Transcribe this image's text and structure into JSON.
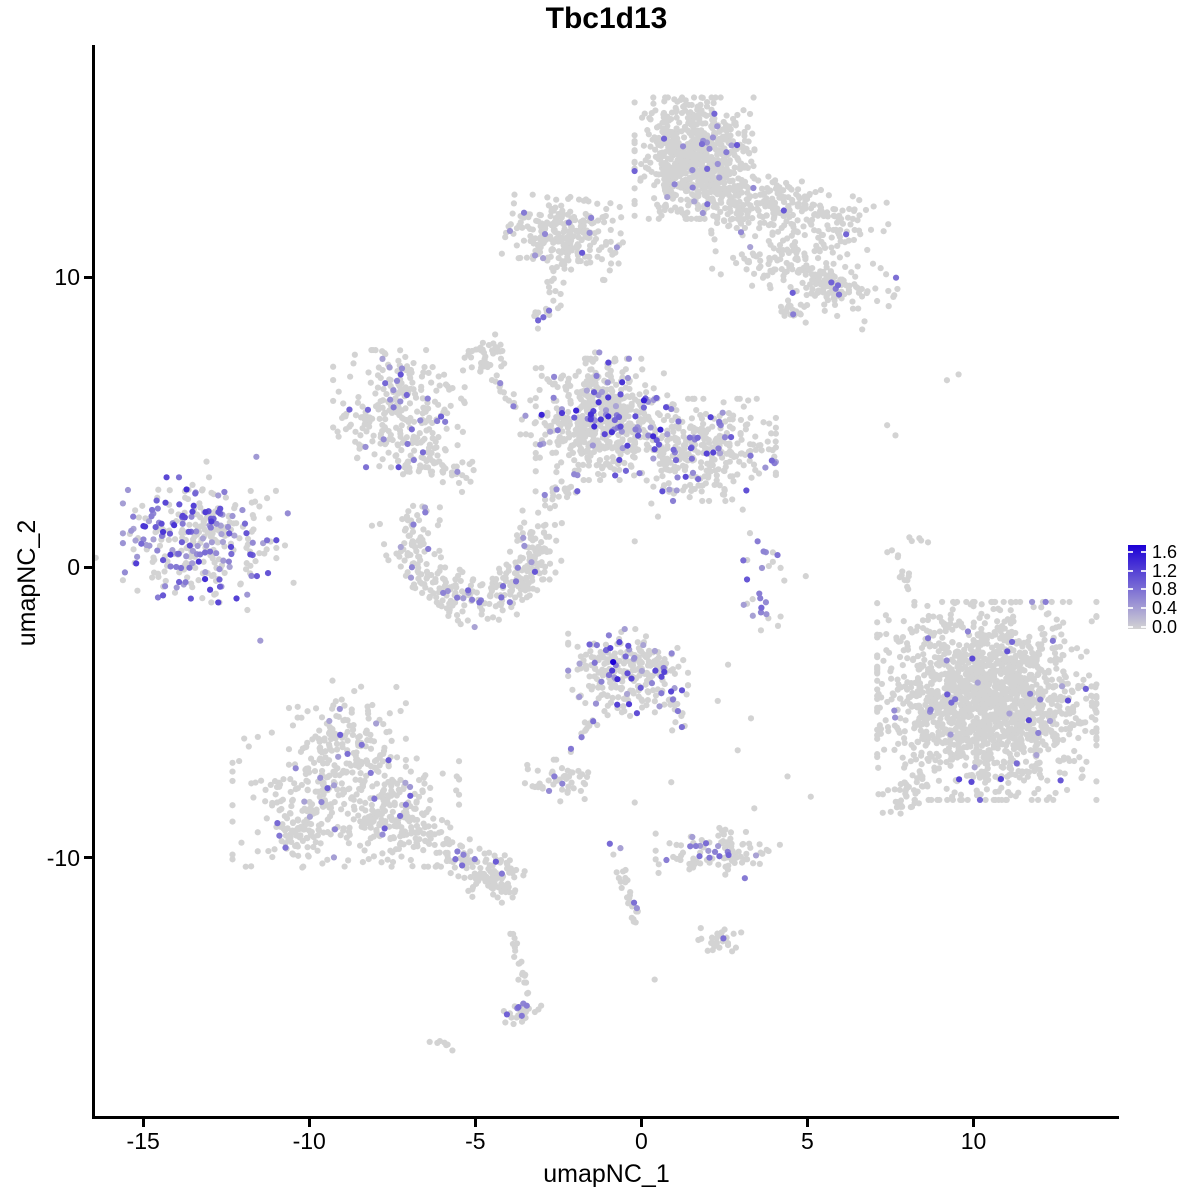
{
  "title": "Tbc1d13",
  "labels": {
    "x_axis": "umapNC_1",
    "y_axis": "umapNC_2"
  },
  "chart_data": {
    "type": "scatter",
    "subtype": "umap-feature-plot",
    "title": "Tbc1d13",
    "xlabel": "umapNC_1",
    "ylabel": "umapNC_2",
    "xlim": [
      -16.45,
      14.35
    ],
    "ylim": [
      -18.9,
      18.0
    ],
    "grid": false,
    "x_tick_values": [
      -15,
      -10,
      -5,
      0,
      5,
      10
    ],
    "x_tick_labels": [
      "-15",
      "-10",
      "-5",
      "0",
      "5",
      "10"
    ],
    "y_tick_values": [
      10,
      0,
      -10
    ],
    "y_tick_labels": [
      "10",
      "0",
      "-10"
    ],
    "point_radius_px": 3.1,
    "legend": {
      "position": "right",
      "breaks": [
        1.6,
        1.2,
        0.8,
        0.4,
        0.0
      ],
      "labels": [
        "1.6",
        "1.2",
        "0.8",
        "0.4",
        "0.0"
      ],
      "bar_range": [
        -0.05,
        1.75
      ],
      "value_max": 1.6,
      "low_color": "#D3D3D3",
      "high_color": "#1C00D6"
    },
    "clusters": [
      {
        "name": "top-main",
        "type": "gauss",
        "c": [
          1.6,
          14.1
        ],
        "sx": 0.82,
        "sy": 0.95,
        "n": 720,
        "frac": 0.022
      },
      {
        "name": "top-band",
        "type": "gauss",
        "c": [
          4.15,
          12.35
        ],
        "sx": 1.5,
        "sy": 0.5,
        "rot": -16,
        "n": 300,
        "frac": 0.02
      },
      {
        "name": "top-arm",
        "type": "gauss",
        "c": [
          4.75,
          10.25
        ],
        "sx": 1.35,
        "sy": 0.5,
        "rot": -24,
        "n": 170,
        "frac": 0.012
      },
      {
        "name": "arm-end",
        "type": "gauss",
        "c": [
          5.8,
          9.7
        ],
        "sx": 0.38,
        "sy": 0.3,
        "n": 55,
        "frac": 0
      },
      {
        "name": "arm-piece",
        "type": "gauss",
        "c": [
          4.55,
          8.8
        ],
        "sx": 0.3,
        "sy": 0.2,
        "rot": -20,
        "n": 22,
        "frac": 0
      },
      {
        "name": "upperleft-blob",
        "type": "gauss",
        "c": [
          -2.3,
          11.45
        ],
        "sx": 0.8,
        "sy": 0.6,
        "rot": -10,
        "n": 270,
        "frac": 0.03
      },
      {
        "name": "upperleft-tail",
        "type": "path",
        "pts": [
          [
            -2.8,
            9.95
          ],
          [
            -2.5,
            9.35
          ]
        ],
        "jit": 0.12,
        "n": 8,
        "frac": 0.25
      },
      {
        "name": "tiny-blob",
        "type": "gauss",
        "c": [
          -2.87,
          8.75
        ],
        "sx": 0.3,
        "sy": 0.13,
        "rot": 42,
        "n": 12,
        "frac": 0.15
      },
      {
        "name": "small-blob",
        "type": "gauss",
        "c": [
          -4.6,
          7.35
        ],
        "sx": 0.35,
        "sy": 0.42,
        "n": 40,
        "frac": 0.02
      },
      {
        "name": "chain-down",
        "type": "path",
        "pts": [
          [
            -4.3,
            6.5
          ],
          [
            -4.0,
            5.9
          ],
          [
            -3.6,
            5.2
          ],
          [
            -3.35,
            4.5
          ]
        ],
        "jit": 0.15,
        "n": 20,
        "frac": 0.05
      },
      {
        "name": "midleft",
        "type": "gauss",
        "c": [
          -7.3,
          5.4
        ],
        "sx": 0.9,
        "sy": 0.95,
        "n": 250,
        "frac": 0.1,
        "vmax": 1.1
      },
      {
        "name": "midleft-hook",
        "type": "gauss",
        "c": [
          -6.8,
          3.75
        ],
        "sx": 0.45,
        "sy": 0.4,
        "n": 45,
        "frac": 0.04
      },
      {
        "name": "midleft-trail",
        "type": "path",
        "pts": [
          [
            -6.3,
            3.4
          ],
          [
            -5.6,
            3.2
          ],
          [
            -5.0,
            3.35
          ]
        ],
        "jit": 0.2,
        "n": 22,
        "frac": 0.04
      },
      {
        "name": "central-main",
        "type": "gauss",
        "c": [
          -1.2,
          5.1
        ],
        "sx": 0.9,
        "sy": 0.95,
        "n": 560,
        "frac": 0.13,
        "vmax": 1.35
      },
      {
        "name": "central-right",
        "type": "gauss",
        "c": [
          1.85,
          4.05
        ],
        "sx": 1.0,
        "sy": 0.8,
        "n": 330,
        "frac": 0.12,
        "vmax": 1.1
      },
      {
        "name": "central-stem",
        "type": "path",
        "pts": [
          [
            -1.5,
            6.4
          ],
          [
            -1.15,
            7.5
          ]
        ],
        "jit": 0.18,
        "n": 12,
        "frac": 0.08
      },
      {
        "name": "crescent",
        "type": "path",
        "pts": [
          [
            -6.9,
            1.7
          ],
          [
            -7.0,
            0.8
          ],
          [
            -6.65,
            -0.2
          ],
          [
            -5.9,
            -0.85
          ],
          [
            -5.0,
            -1.15
          ],
          [
            -4.1,
            -1.0
          ],
          [
            -3.45,
            -0.35
          ],
          [
            -3.2,
            0.5
          ],
          [
            -3.3,
            1.5
          ]
        ],
        "jit": 0.38,
        "n": 340,
        "frac": 0.085
      },
      {
        "name": "chain-mid",
        "type": "path",
        "pts": [
          [
            -3.0,
            2.3
          ],
          [
            -2.4,
            2.65
          ],
          [
            -1.9,
            3.0
          ]
        ],
        "jit": 0.22,
        "n": 26,
        "frac": 0.1
      },
      {
        "name": "left-cluster",
        "type": "gauss",
        "c": [
          -13.3,
          0.95
        ],
        "sx": 1.05,
        "sy": 0.98,
        "n": 310,
        "frac": 0.42,
        "vmax": 1.25
      },
      {
        "name": "left-outliers",
        "type": "gauss",
        "c": [
          -13.0,
          0.9
        ],
        "sx": 2.0,
        "sy": 1.6,
        "n": 26,
        "frac": 0.12
      },
      {
        "name": "botleft-top",
        "type": "gauss",
        "c": [
          -8.85,
          -5.95
        ],
        "sx": 0.8,
        "sy": 0.85,
        "n": 140,
        "frac": 0.07
      },
      {
        "name": "botleft-main",
        "type": "gauss",
        "c": [
          -8.9,
          -8.0
        ],
        "sx": 1.55,
        "sy": 1.05,
        "n": 340,
        "frac": 0.075
      },
      {
        "name": "botleft-left",
        "type": "gauss",
        "c": [
          -10.45,
          -9.35
        ],
        "sx": 0.5,
        "sy": 0.45,
        "n": 55,
        "frac": 0.05
      },
      {
        "name": "botleft-right",
        "type": "gauss",
        "c": [
          -7.55,
          -9.0
        ],
        "sx": 0.6,
        "sy": 0.55,
        "n": 75,
        "frac": 0.06
      },
      {
        "name": "botleft-tail",
        "type": "path",
        "pts": [
          [
            -6.9,
            -8.6
          ],
          [
            -6.0,
            -9.55
          ],
          [
            -5.2,
            -10.3
          ],
          [
            -4.45,
            -10.85
          ]
        ],
        "jit": 0.3,
        "n": 100,
        "frac": 0.05
      },
      {
        "name": "tail-end",
        "type": "gauss",
        "c": [
          -4.35,
          -10.6
        ],
        "sx": 0.45,
        "sy": 0.35,
        "n": 60,
        "frac": 0.03
      },
      {
        "name": "centerbot-main",
        "type": "gauss",
        "c": [
          -0.4,
          -3.62
        ],
        "sx": 0.82,
        "sy": 0.68,
        "n": 270,
        "frac": 0.15,
        "vmax": 1.2
      },
      {
        "name": "centerbot-chain",
        "type": "path",
        "pts": [
          [
            -1.35,
            -5.15
          ],
          [
            -1.8,
            -5.8
          ],
          [
            -2.2,
            -6.35
          ]
        ],
        "jit": 0.12,
        "n": 10,
        "frac": 0
      },
      {
        "name": "centerbot-blob",
        "type": "gauss",
        "c": [
          -2.55,
          -7.35
        ],
        "sx": 0.55,
        "sy": 0.33,
        "n": 48,
        "frac": 0.04
      },
      {
        "name": "centerbot-ext",
        "type": "path",
        "pts": [
          [
            0.9,
            -4.5
          ],
          [
            1.1,
            -5.1
          ],
          [
            1.2,
            -5.65
          ]
        ],
        "jit": 0.12,
        "n": 10,
        "frac": 0
      },
      {
        "name": "right-cluster",
        "type": "gauss",
        "c": [
          10.4,
          -4.6
        ],
        "sx": 1.5,
        "sy": 1.55,
        "n": 1700,
        "frac": 0.02,
        "vmax": 1.1
      },
      {
        "name": "right-tail",
        "type": "path",
        "pts": [
          [
            8.25,
            -6.95
          ],
          [
            7.95,
            -7.75
          ],
          [
            7.7,
            -8.15
          ]
        ],
        "jit": 0.25,
        "n": 35,
        "frac": 0.03
      },
      {
        "name": "right-strand",
        "type": "path",
        "pts": [
          [
            7.65,
            0.75
          ],
          [
            7.75,
            -0.1
          ],
          [
            7.9,
            -0.75
          ]
        ],
        "jit": 0.12,
        "n": 13,
        "frac": 0
      },
      {
        "name": "right-dash",
        "type": "gauss",
        "c": [
          8.25,
          0.95
        ],
        "sx": 0.2,
        "sy": 0.08,
        "rot": -15,
        "n": 5,
        "frac": 0
      },
      {
        "name": "sparse-mid",
        "type": "gauss",
        "c": [
          3.6,
          -0.6
        ],
        "sx": 0.45,
        "sy": 1.25,
        "n": 26,
        "frac": 0.3
      },
      {
        "name": "bottom-horiz",
        "type": "gauss",
        "c": [
          2.3,
          -9.8
        ],
        "sx": 0.85,
        "sy": 0.42,
        "n": 95,
        "frac": 0.1
      },
      {
        "name": "bottom-strand",
        "type": "path",
        "pts": [
          [
            -0.95,
            -9.55
          ],
          [
            -0.6,
            -10.4
          ],
          [
            -0.35,
            -11.3
          ],
          [
            -0.25,
            -12.2
          ]
        ],
        "jit": 0.12,
        "n": 26,
        "frac": 0.07
      },
      {
        "name": "arrow-blob",
        "type": "gauss",
        "c": [
          2.25,
          -12.85
        ],
        "sx": 0.4,
        "sy": 0.26,
        "n": 24,
        "frac": 0.04
      },
      {
        "name": "lower-strand",
        "type": "path",
        "pts": [
          [
            -3.9,
            -12.5
          ],
          [
            -3.75,
            -13.3
          ],
          [
            -3.6,
            -14.1
          ],
          [
            -3.5,
            -14.8
          ]
        ],
        "jit": 0.1,
        "n": 20,
        "frac": 0
      },
      {
        "name": "lower-end",
        "type": "gauss",
        "c": [
          -3.6,
          -15.3
        ],
        "sx": 0.3,
        "sy": 0.28,
        "n": 30,
        "frac": 0.15
      },
      {
        "name": "bottom-dash",
        "type": "gauss",
        "c": [
          -6.05,
          -16.4
        ],
        "sx": 0.28,
        "sy": 0.1,
        "rot": -28,
        "n": 7,
        "frac": 0
      }
    ],
    "singles": [
      [
        -4.2,
        -11.55
      ],
      [
        0.4,
        -14.2
      ],
      [
        9.2,
        6.45
      ],
      [
        9.55,
        6.65
      ],
      [
        7.4,
        4.9
      ],
      [
        7.65,
        4.55
      ],
      [
        7.9,
        -1.85
      ],
      [
        0.3,
        2.2
      ],
      [
        0.5,
        1.75
      ],
      [
        -11.5,
        2.1
      ],
      [
        4.95,
        -0.3
      ],
      [
        2.3,
        -4.6
      ],
      [
        3.3,
        -5.2
      ],
      [
        2.9,
        -6.3
      ],
      [
        4.4,
        -7.2
      ],
      [
        5.1,
        -7.9
      ],
      [
        3.4,
        -8.3
      ],
      [
        -0.2,
        -8.1
      ],
      [
        0.9,
        -7.4
      ],
      [
        -9.3,
        -3.9
      ],
      [
        -3.0,
        6.6
      ],
      [
        -2.2,
        5.9
      ],
      [
        -0.2,
        0.9
      ],
      [
        2.5,
        2.7
      ],
      [
        -5.4,
        2.6
      ]
    ],
    "extra_points": [
      [
        -0.85,
        -3.26,
        1.6
      ],
      [
        -0.72,
        -3.85,
        1.3
      ],
      [
        5.72,
        9.82,
        0.85
      ],
      [
        5.92,
        9.72,
        0.8
      ],
      [
        5.95,
        9.4,
        0.75
      ],
      [
        5.85,
        9.6,
        0.7
      ],
      [
        4.57,
        8.72,
        0.65
      ],
      [
        -5.6,
        -10.05,
        0.75
      ],
      [
        -4.2,
        -10.55,
        0.7
      ],
      [
        -2.95,
        8.62,
        0.8
      ],
      [
        -2.78,
        8.85,
        0.7
      ],
      [
        -0.95,
        -9.52,
        0.8
      ],
      [
        -0.22,
        -11.55,
        0.75
      ],
      [
        2.47,
        -12.78,
        0.75
      ],
      [
        -3.7,
        -15.15,
        0.8
      ],
      [
        -3.6,
        -15.45,
        0.7
      ],
      [
        -3.45,
        -15.1,
        0.65
      ],
      [
        -15.3,
        1.75,
        0.65
      ],
      [
        -11.7,
        0.85,
        0.55
      ],
      [
        1.75,
        -9.95,
        0.75
      ],
      [
        2.05,
        -10.0,
        0.7
      ],
      [
        2.35,
        -9.95,
        0.8
      ],
      [
        2.6,
        -9.8,
        0.65
      ],
      [
        -1.45,
        -5.3,
        0.75
      ],
      [
        -1.8,
        -5.85,
        0.65
      ],
      [
        -2.12,
        -6.25,
        0.7
      ],
      [
        -2.62,
        -7.2,
        0.65
      ],
      [
        -2.38,
        -7.45,
        0.6
      ],
      [
        -2.78,
        -7.7,
        0.55
      ],
      [
        0.95,
        -4.55,
        0.65
      ],
      [
        1.1,
        -4.95,
        0.7
      ],
      [
        1.22,
        -5.5,
        0.75
      ],
      [
        3.5,
        0.9,
        0.65
      ],
      [
        3.68,
        0.55,
        0.6
      ],
      [
        3.55,
        -0.9,
        0.65
      ],
      [
        3.75,
        -1.2,
        0.55
      ],
      [
        3.6,
        -1.55,
        0.6
      ],
      [
        -6.85,
        3.7,
        0.65
      ],
      [
        -4.25,
        6.35,
        0.55
      ],
      [
        -1.35,
        6.6,
        0.65
      ],
      [
        3.0,
        11.55,
        0.55
      ],
      [
        1.0,
        13.2,
        0.6
      ],
      [
        2.3,
        13.9,
        0.5
      ]
    ]
  }
}
